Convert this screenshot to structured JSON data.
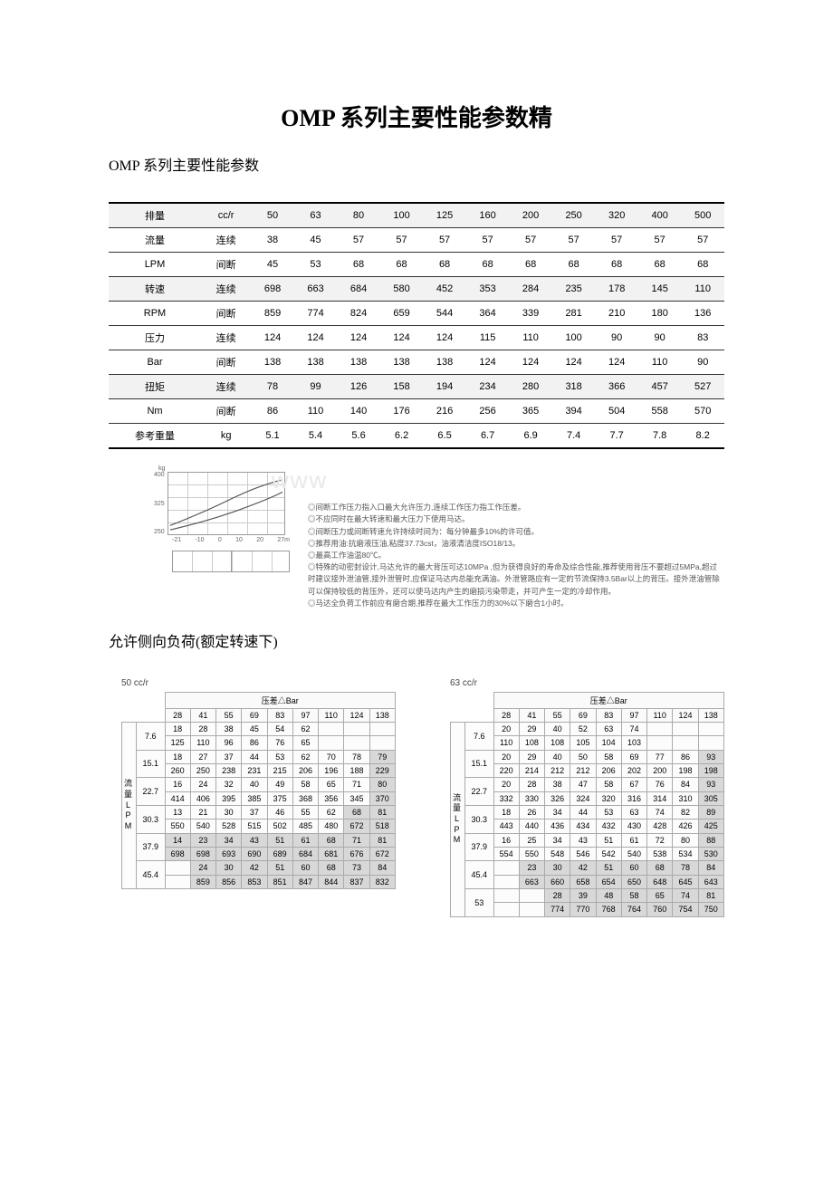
{
  "title": "OMP 系列主要性能参数精",
  "subtitle": "OMP 系列主要性能参数",
  "main_table": {
    "rows": [
      {
        "shade": true,
        "c0": "排量",
        "c1": "cc/r",
        "d": [
          "50",
          "63",
          "80",
          "100",
          "125",
          "160",
          "200",
          "250",
          "320",
          "400",
          "500"
        ]
      },
      {
        "shade": false,
        "c0": "流量",
        "c1": "连续",
        "d": [
          "38",
          "45",
          "57",
          "57",
          "57",
          "57",
          "57",
          "57",
          "57",
          "57",
          "57"
        ]
      },
      {
        "shade": false,
        "c0": "LPM",
        "c1": "间断",
        "d": [
          "45",
          "53",
          "68",
          "68",
          "68",
          "68",
          "68",
          "68",
          "68",
          "68",
          "68"
        ]
      },
      {
        "shade": true,
        "c0": "转速",
        "c1": "连续",
        "d": [
          "698",
          "663",
          "684",
          "580",
          "452",
          "353",
          "284",
          "235",
          "178",
          "145",
          "110"
        ]
      },
      {
        "shade": false,
        "c0": "RPM",
        "c1": "间断",
        "d": [
          "859",
          "774",
          "824",
          "659",
          "544",
          "364",
          "339",
          "281",
          "210",
          "180",
          "136"
        ]
      },
      {
        "shade": false,
        "c0": "压力",
        "c1": "连续",
        "d": [
          "124",
          "124",
          "124",
          "124",
          "124",
          "115",
          "110",
          "100",
          "90",
          "90",
          "83"
        ]
      },
      {
        "shade": false,
        "c0": "Bar",
        "c1": "间断",
        "d": [
          "138",
          "138",
          "138",
          "138",
          "138",
          "124",
          "124",
          "124",
          "124",
          "110",
          "90"
        ]
      },
      {
        "shade": true,
        "c0": "扭矩",
        "c1": "连续",
        "d": [
          "78",
          "99",
          "126",
          "158",
          "194",
          "234",
          "280",
          "318",
          "366",
          "457",
          "527"
        ]
      },
      {
        "shade": false,
        "c0": "Nm",
        "c1": "间断",
        "d": [
          "86",
          "110",
          "140",
          "176",
          "216",
          "256",
          "365",
          "394",
          "504",
          "558",
          "570"
        ]
      },
      {
        "shade": false,
        "c0": "参考重量",
        "c1": "kg",
        "d": [
          "5.1",
          "5.4",
          "5.6",
          "6.2",
          "6.5",
          "6.7",
          "6.9",
          "7.4",
          "7.7",
          "7.8",
          "8.2"
        ]
      }
    ]
  },
  "chart": {
    "kg_label": "kg",
    "y_ticks": [
      "400",
      "325",
      "250"
    ],
    "x_ticks": [
      "-21",
      "-10",
      "0",
      "10",
      "20",
      "27m"
    ]
  },
  "notes": [
    "◎间断工作压力指入口最大允许压力,连续工作压力指工作压差。",
    "◎不应同时在最大转速和最大压力下使用马达。",
    "◎间断压力或间断转速允许持续时间为：每分钟最多10%的许可值。",
    "◎推荐用油:抗磨液压油,粘度37.73cst，油液清洁度ISO18/13。",
    "◎最高工作油温80℃。",
    "◎特殊的动密封设计,马达允许的最大背压可达10MPa ,但为获得良好的寿命及综合性能,推荐使用背压不要超过5MPa,超过时建议接外泄油管,接外泄管时,应保证马达内总能充满油。外泄管路应有一定的节流保持3.5Bar以上的背压。接外泄油管除可以保持较低的背压外，还可以使马达内产生的磨损污染带走，并可产生一定的冷却作用。",
    "◎马达全负荷工作前应有磨合期,推荐在最大工作压力的30%以下磨合1小时。"
  ],
  "watermark": "www",
  "section2_title": "允许侧向负荷(额定转速下)",
  "table50": {
    "caption": "50 cc/r",
    "bar_label": "压差△Bar",
    "flow_label": "流量LPM",
    "bar_heads": [
      "28",
      "41",
      "55",
      "69",
      "83",
      "97",
      "110",
      "124",
      "138"
    ],
    "rows": [
      {
        "f": "7.6",
        "a": [
          "18",
          "28",
          "38",
          "45",
          "54",
          "62",
          "",
          "",
          ""
        ],
        "b": [
          "125",
          "110",
          "96",
          "86",
          "76",
          "65",
          "",
          "",
          ""
        ]
      },
      {
        "f": "15.1",
        "a": [
          "18",
          "27",
          "37",
          "44",
          "53",
          "62",
          "70",
          "78",
          "79"
        ],
        "b": [
          "260",
          "250",
          "238",
          "231",
          "215",
          "206",
          "196",
          "188",
          "229"
        ],
        "hl": [
          8
        ]
      },
      {
        "f": "22.7",
        "a": [
          "16",
          "24",
          "32",
          "40",
          "49",
          "58",
          "65",
          "71",
          "80"
        ],
        "b": [
          "414",
          "406",
          "395",
          "385",
          "375",
          "368",
          "356",
          "345",
          "370"
        ],
        "hl": [
          8
        ]
      },
      {
        "f": "30.3",
        "a": [
          "13",
          "21",
          "30",
          "37",
          "46",
          "55",
          "62",
          "68",
          "81"
        ],
        "b": [
          "550",
          "540",
          "528",
          "515",
          "502",
          "485",
          "480",
          "672",
          "518"
        ],
        "hl": [
          7,
          8
        ]
      },
      {
        "f": "37.9",
        "a": [
          "14",
          "23",
          "34",
          "43",
          "51",
          "61",
          "68",
          "71",
          "81"
        ],
        "b": [
          "698",
          "698",
          "693",
          "690",
          "689",
          "684",
          "681",
          "676",
          "672"
        ],
        "hl": [
          0,
          1,
          2,
          3,
          4,
          5,
          6,
          7,
          8
        ]
      },
      {
        "f": "45.4",
        "a": [
          "",
          "24",
          "30",
          "42",
          "51",
          "60",
          "68",
          "73",
          "84"
        ],
        "b": [
          "",
          "859",
          "856",
          "853",
          "851",
          "847",
          "844",
          "837",
          "832"
        ],
        "hl": [
          1,
          2,
          3,
          4,
          5,
          6,
          7,
          8
        ]
      }
    ]
  },
  "table63": {
    "caption": "63 cc/r",
    "bar_label": "压差△Bar",
    "flow_label": "流量LPM",
    "bar_heads": [
      "28",
      "41",
      "55",
      "69",
      "83",
      "97",
      "110",
      "124",
      "138"
    ],
    "rows": [
      {
        "f": "7.6",
        "a": [
          "20",
          "29",
          "40",
          "52",
          "63",
          "74",
          "",
          "",
          ""
        ],
        "b": [
          "110",
          "108",
          "108",
          "105",
          "104",
          "103",
          "",
          "",
          ""
        ]
      },
      {
        "f": "15.1",
        "a": [
          "20",
          "29",
          "40",
          "50",
          "58",
          "69",
          "77",
          "86",
          "93"
        ],
        "b": [
          "220",
          "214",
          "212",
          "212",
          "206",
          "202",
          "200",
          "198",
          "198"
        ],
        "hl": [
          8
        ]
      },
      {
        "f": "22.7",
        "a": [
          "20",
          "28",
          "38",
          "47",
          "58",
          "67",
          "76",
          "84",
          "93"
        ],
        "b": [
          "332",
          "330",
          "326",
          "324",
          "320",
          "316",
          "314",
          "310",
          "305"
        ],
        "hl": [
          8
        ]
      },
      {
        "f": "30.3",
        "a": [
          "18",
          "26",
          "34",
          "44",
          "53",
          "63",
          "74",
          "82",
          "89"
        ],
        "b": [
          "443",
          "440",
          "436",
          "434",
          "432",
          "430",
          "428",
          "426",
          "425"
        ],
        "hl": [
          8
        ]
      },
      {
        "f": "37.9",
        "a": [
          "16",
          "25",
          "34",
          "43",
          "51",
          "61",
          "72",
          "80",
          "88"
        ],
        "b": [
          "554",
          "550",
          "548",
          "546",
          "542",
          "540",
          "538",
          "534",
          "530"
        ],
        "hl": [
          8
        ]
      },
      {
        "f": "45.4",
        "a": [
          "",
          "23",
          "30",
          "42",
          "51",
          "60",
          "68",
          "78",
          "84"
        ],
        "b": [
          "",
          "663",
          "660",
          "658",
          "654",
          "650",
          "648",
          "645",
          "643"
        ],
        "hl": [
          1,
          2,
          3,
          4,
          5,
          6,
          7,
          8
        ]
      },
      {
        "f": "53",
        "a": [
          "",
          "",
          "28",
          "39",
          "48",
          "58",
          "65",
          "74",
          "81"
        ],
        "b": [
          "",
          "",
          "774",
          "770",
          "768",
          "764",
          "760",
          "754",
          "750"
        ],
        "hl": [
          2,
          3,
          4,
          5,
          6,
          7,
          8
        ]
      }
    ]
  }
}
